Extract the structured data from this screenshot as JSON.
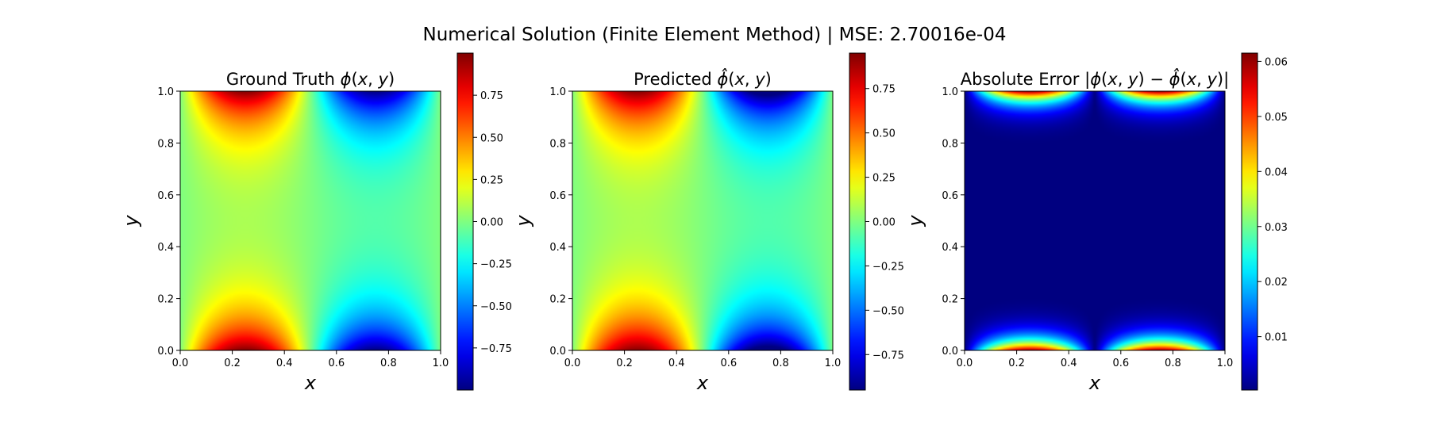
{
  "figure": {
    "suptitle": "Numerical Solution (Finite Element Method) | MSE: 2.70016e-04"
  },
  "colormap": "jet",
  "chart_data": [
    {
      "type": "heatmap",
      "title": "Ground Truth ϕ(x, y)",
      "title_parts": [
        {
          "t": "Ground Truth ",
          "style": "normal"
        },
        {
          "t": "ϕ",
          "style": "italic"
        },
        {
          "t": "(",
          "style": "normal"
        },
        {
          "t": "x",
          "style": "italic"
        },
        {
          "t": ", ",
          "style": "normal"
        },
        {
          "t": "y",
          "style": "italic"
        },
        {
          "t": ")",
          "style": "normal"
        }
      ],
      "xlabel": "x",
      "ylabel": "y",
      "xlim": [
        0,
        1
      ],
      "ylim": [
        0,
        1
      ],
      "xticks": [
        "0.0",
        "0.2",
        "0.4",
        "0.6",
        "0.8",
        "1.0"
      ],
      "yticks": [
        "0.0",
        "0.2",
        "0.4",
        "0.6",
        "0.8",
        "1.0"
      ],
      "field": "phi",
      "vmin": -1.0,
      "vmax": 1.0,
      "colorbar_ticks": [
        {
          "value": 0.75,
          "label": "0.75"
        },
        {
          "value": 0.5,
          "label": "0.50"
        },
        {
          "value": 0.25,
          "label": "0.25"
        },
        {
          "value": 0.0,
          "label": "0.00"
        },
        {
          "value": -0.25,
          "label": "−0.25"
        },
        {
          "value": -0.5,
          "label": "−0.50"
        },
        {
          "value": -0.75,
          "label": "−0.75"
        }
      ]
    },
    {
      "type": "heatmap",
      "title": "Predicted ϕ̂(x, y)",
      "title_parts": [
        {
          "t": "Predicted ",
          "style": "normal"
        },
        {
          "t": "ϕ̂",
          "style": "italic"
        },
        {
          "t": "(",
          "style": "normal"
        },
        {
          "t": "x",
          "style": "italic"
        },
        {
          "t": ", ",
          "style": "normal"
        },
        {
          "t": "y",
          "style": "italic"
        },
        {
          "t": ")",
          "style": "normal"
        }
      ],
      "xlabel": "x",
      "ylabel": "y",
      "xlim": [
        0,
        1
      ],
      "ylim": [
        0,
        1
      ],
      "xticks": [
        "0.0",
        "0.2",
        "0.4",
        "0.6",
        "0.8",
        "1.0"
      ],
      "yticks": [
        "0.0",
        "0.2",
        "0.4",
        "0.6",
        "0.8",
        "1.0"
      ],
      "field": "phi_hat",
      "vmin": -0.95,
      "vmax": 0.95,
      "colorbar_ticks": [
        {
          "value": 0.75,
          "label": "0.75"
        },
        {
          "value": 0.5,
          "label": "0.50"
        },
        {
          "value": 0.25,
          "label": "0.25"
        },
        {
          "value": 0.0,
          "label": "0.00"
        },
        {
          "value": -0.25,
          "label": "−0.25"
        },
        {
          "value": -0.5,
          "label": "−0.50"
        },
        {
          "value": -0.75,
          "label": "−0.75"
        }
      ]
    },
    {
      "type": "heatmap",
      "title": "Absolute Error |ϕ(x, y) − ϕ̂(x, y)|",
      "title_parts": [
        {
          "t": "Absolute Error |",
          "style": "normal"
        },
        {
          "t": "ϕ",
          "style": "italic"
        },
        {
          "t": "(",
          "style": "normal"
        },
        {
          "t": "x",
          "style": "italic"
        },
        {
          "t": ", ",
          "style": "normal"
        },
        {
          "t": "y",
          "style": "italic"
        },
        {
          "t": ") − ",
          "style": "normal"
        },
        {
          "t": "ϕ̂",
          "style": "italic"
        },
        {
          "t": "(",
          "style": "normal"
        },
        {
          "t": "x",
          "style": "italic"
        },
        {
          "t": ", ",
          "style": "normal"
        },
        {
          "t": "y",
          "style": "italic"
        },
        {
          "t": ")|",
          "style": "normal"
        }
      ],
      "xlabel": "x",
      "ylabel": "y",
      "xlim": [
        0,
        1
      ],
      "ylim": [
        0,
        1
      ],
      "xticks": [
        "0.0",
        "0.2",
        "0.4",
        "0.6",
        "0.8",
        "1.0"
      ],
      "yticks": [
        "0.0",
        "0.2",
        "0.4",
        "0.6",
        "0.8",
        "1.0"
      ],
      "field": "abs_error",
      "vmin": 0.0003,
      "vmax": 0.0615,
      "colorbar_ticks": [
        {
          "value": 0.06,
          "label": "0.06"
        },
        {
          "value": 0.05,
          "label": "0.05"
        },
        {
          "value": 0.04,
          "label": "0.04"
        },
        {
          "value": 0.03,
          "label": "0.03"
        },
        {
          "value": 0.02,
          "label": "0.02"
        },
        {
          "value": 0.01,
          "label": "0.01"
        }
      ]
    }
  ]
}
